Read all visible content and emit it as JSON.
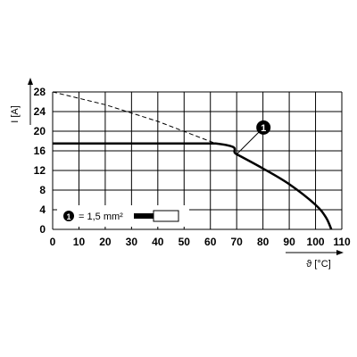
{
  "chart_data": {
    "type": "line",
    "xlabel": "ϑ [°C]",
    "ylabel": "I [A]",
    "xlim": [
      0,
      110
    ],
    "ylim": [
      0,
      28
    ],
    "x_ticks": [
      0,
      10,
      20,
      30,
      40,
      50,
      60,
      70,
      80,
      90,
      100,
      110
    ],
    "y_ticks": [
      0,
      4,
      8,
      12,
      16,
      20,
      24,
      28
    ],
    "grid": true,
    "series": [
      {
        "style": "solid",
        "x": [
          0,
          62,
          70,
          80,
          90,
          100,
          104,
          106
        ],
        "y": [
          17.5,
          17.5,
          15.3,
          12.4,
          9.2,
          5.0,
          2.4,
          0
        ]
      },
      {
        "style": "dashed",
        "x": [
          0,
          20,
          40,
          62
        ],
        "y": [
          28,
          25.4,
          22.0,
          17.5
        ]
      }
    ],
    "marker": {
      "label": "1",
      "x": 70,
      "y": 15.3
    },
    "legend": {
      "marker": "1",
      "text": "= 1,5 mm²"
    }
  }
}
